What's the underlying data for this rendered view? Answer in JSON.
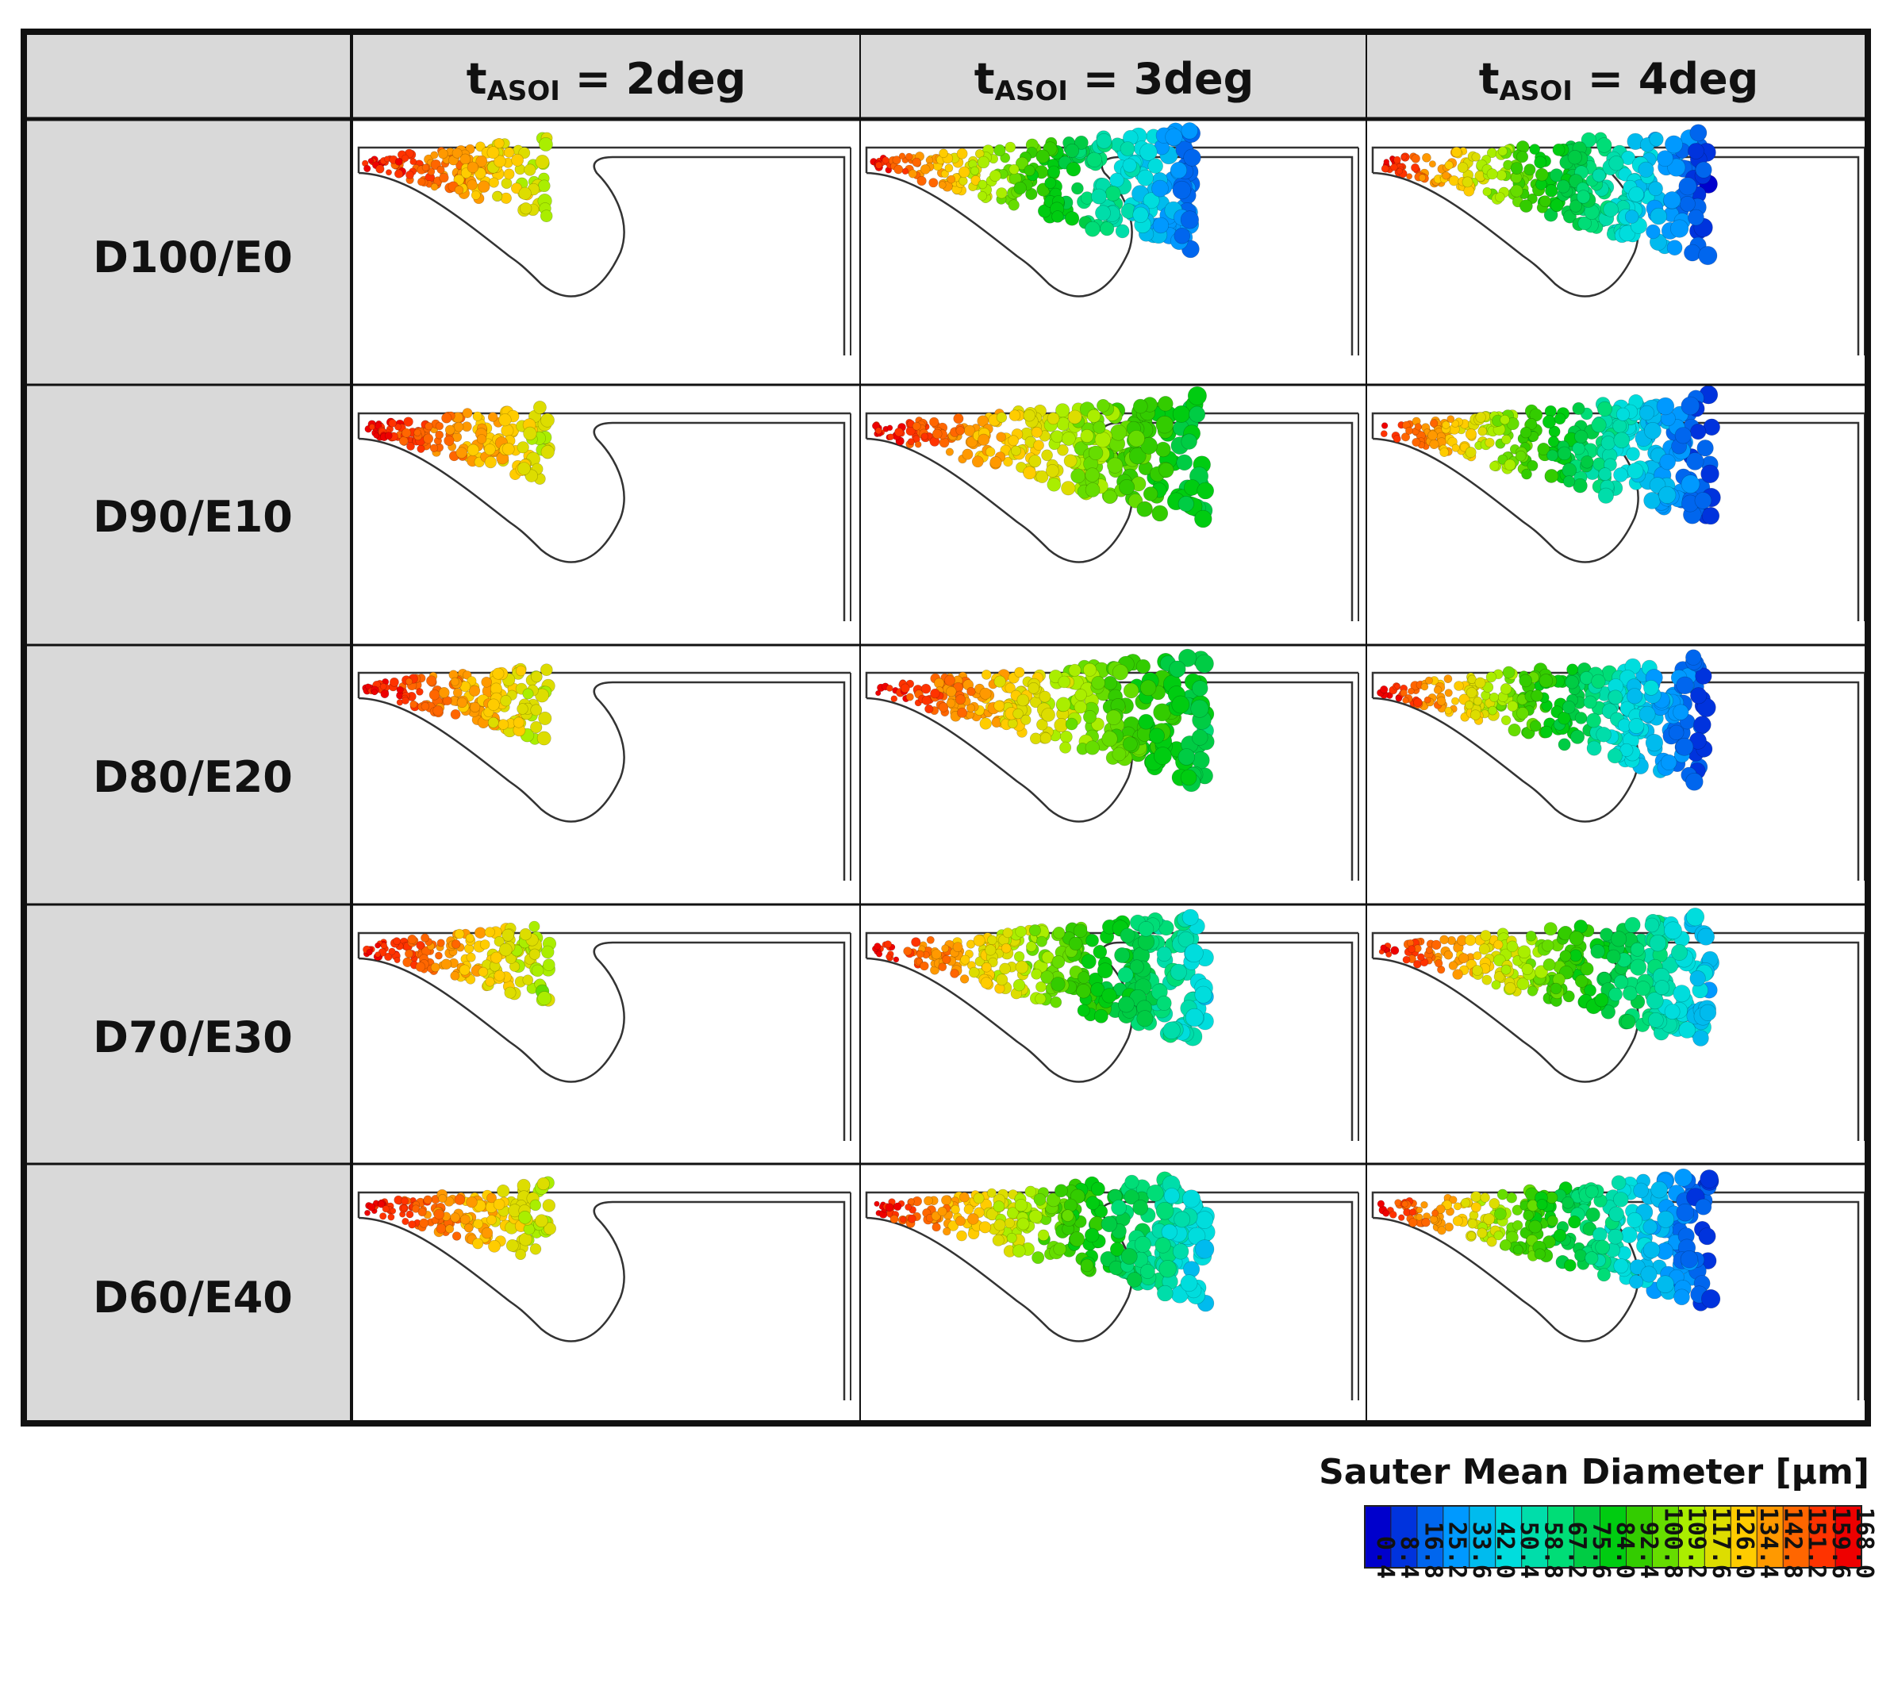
{
  "header": {
    "columns": [
      {
        "var": "t",
        "sub": "ASOI",
        "rest": " = 2deg"
      },
      {
        "var": "t",
        "sub": "ASOI",
        "rest": " = 3deg"
      },
      {
        "var": "t",
        "sub": "ASOI",
        "rest": " = 4deg"
      }
    ]
  },
  "rows": [
    "D100/E0",
    "D90/E10",
    "D80/E20",
    "D70/E30",
    "D60/E40"
  ],
  "spray": {
    "description_levels": "tip color level 0-1 on colormap (1=red, 0=blue) and penetration fraction",
    "cells": [
      [
        {
          "reach": 0.45,
          "tip": 0.68
        },
        {
          "reach": 0.95,
          "tip": 0.12
        },
        {
          "reach": 1.0,
          "tip": 0.04
        }
      ],
      [
        {
          "reach": 0.45,
          "tip": 0.7
        },
        {
          "reach": 1.0,
          "tip": 0.45
        },
        {
          "reach": 1.0,
          "tip": 0.05
        }
      ],
      [
        {
          "reach": 0.45,
          "tip": 0.68
        },
        {
          "reach": 1.0,
          "tip": 0.44
        },
        {
          "reach": 1.0,
          "tip": 0.05
        }
      ],
      [
        {
          "reach": 0.45,
          "tip": 0.66
        },
        {
          "reach": 1.0,
          "tip": 0.28
        },
        {
          "reach": 1.0,
          "tip": 0.22
        }
      ],
      [
        {
          "reach": 0.45,
          "tip": 0.68
        },
        {
          "reach": 1.0,
          "tip": 0.25
        },
        {
          "reach": 1.0,
          "tip": 0.05
        }
      ]
    ]
  },
  "legend": {
    "title": "Sauter Mean Diameter [μm]",
    "colors": [
      "#0000cc",
      "#0033dd",
      "#0066ee",
      "#0099ff",
      "#00bbee",
      "#00dddd",
      "#00ddaa",
      "#00dd77",
      "#00cc44",
      "#00cc11",
      "#33cc00",
      "#66dd00",
      "#aaee00",
      "#dddd00",
      "#ffcc00",
      "#ff9900",
      "#ff6600",
      "#ff3300",
      "#ee0000"
    ],
    "ticks": [
      "0.4",
      "8.4",
      "16.8",
      "25.2",
      "33.6",
      "42.0",
      "50.4",
      "58.8",
      "67.2",
      "75.6",
      "84.0",
      "92.4",
      "100.8",
      "109.2",
      "117.6",
      "126.0",
      "134.4",
      "142.8",
      "151.2",
      "159.6",
      "168.0"
    ]
  }
}
